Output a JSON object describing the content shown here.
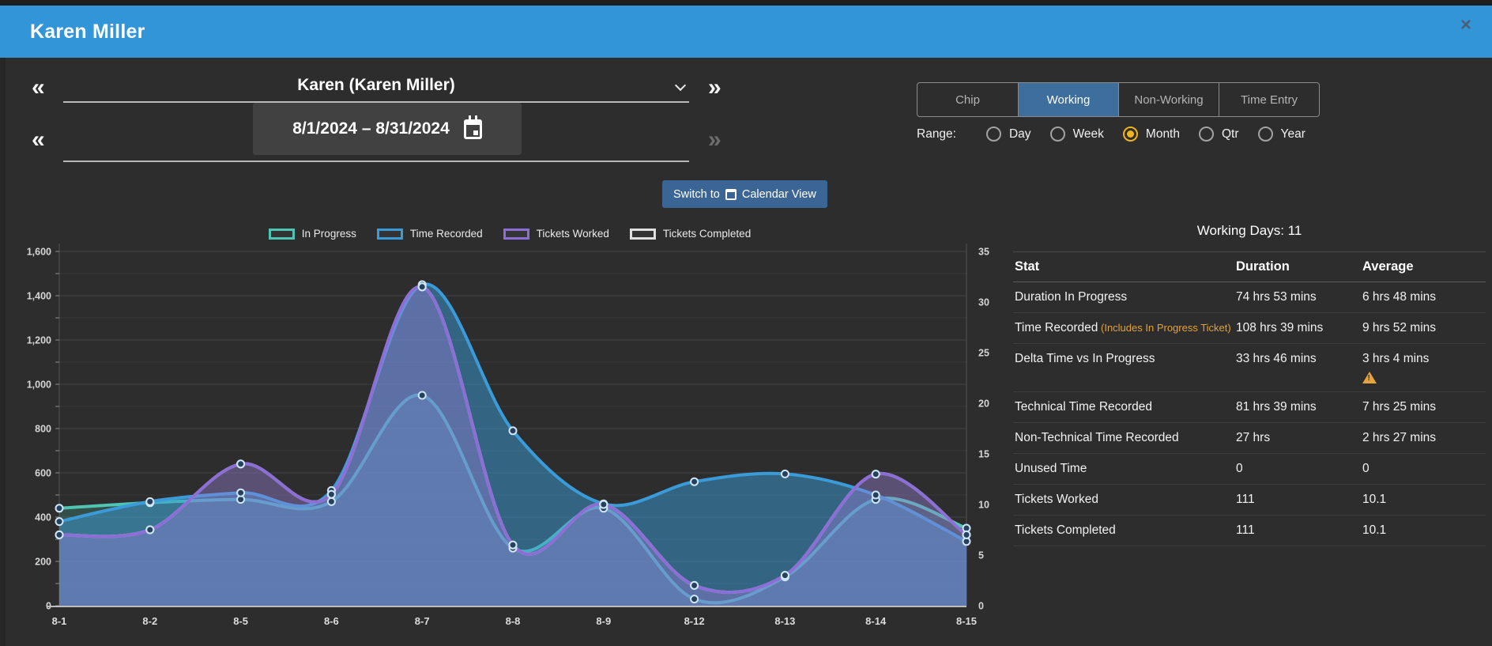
{
  "window": {
    "title": "Karen Miller",
    "close": "×"
  },
  "selectors": {
    "person": {
      "prev": "«",
      "label": "Karen (Karen Miller)",
      "next": "»"
    },
    "dates": {
      "prev": "«",
      "value": "8/1/2024 – 8/31/2024",
      "next": "»"
    }
  },
  "view_tabs": {
    "tabs": [
      "Chip",
      "Working",
      "Non-Working",
      "Time Entry"
    ],
    "active": "Working"
  },
  "range": {
    "label": "Range:",
    "options": [
      "Day",
      "Week",
      "Month",
      "Qtr",
      "Year"
    ],
    "selected": "Month"
  },
  "calendar_button": {
    "prefix": "Switch to",
    "suffix": "Calendar View"
  },
  "summary": {
    "title": "Working Days: 11",
    "columns": [
      "Stat",
      "Duration",
      "Average"
    ],
    "rows": [
      {
        "stat": "Duration In Progress",
        "duration": "74 hrs 53 mins",
        "average": "6 hrs 48 mins"
      },
      {
        "stat": "Time Recorded",
        "note": "(Includes In Progress Ticket)",
        "duration": "108 hrs 39 mins",
        "average": "9 hrs 52 mins"
      },
      {
        "stat": "Delta Time vs In Progress",
        "duration": "33 hrs 46 mins",
        "average": "3 hrs 4 mins",
        "warning": true
      },
      {
        "stat": "Technical Time Recorded",
        "duration": "81 hrs 39 mins",
        "average": "7 hrs 25 mins"
      },
      {
        "stat": "Non-Technical Time Recorded",
        "duration": "27 hrs",
        "average": "2 hrs 27 mins"
      },
      {
        "stat": "Unused Time",
        "duration": "0",
        "average": "0"
      },
      {
        "stat": "Tickets Worked",
        "duration": "111",
        "average": "10.1"
      },
      {
        "stat": "Tickets Completed",
        "duration": "111",
        "average": "10.1"
      }
    ]
  },
  "chart_data": {
    "type": "line",
    "x": [
      "8-1",
      "8-2",
      "8-5",
      "8-6",
      "8-7",
      "8-8",
      "8-9",
      "8-12",
      "8-13",
      "8-14",
      "8-15"
    ],
    "left_axis": {
      "min": 0,
      "max": 1600,
      "tick_step": 200,
      "minor_step": 100
    },
    "right_axis": {
      "min": 0,
      "max": 35,
      "tick_step": 5
    },
    "grid": true,
    "legend_position": "top",
    "series": [
      {
        "name": "In Progress",
        "axis": "left",
        "color": "#4fc4b2",
        "fill": "rgba(79,196,178,0.22)",
        "values": [
          440,
          465,
          480,
          470,
          950,
          260,
          440,
          30,
          130,
          480,
          350
        ]
      },
      {
        "name": "Time Recorded",
        "axis": "left",
        "color": "#3a9bd8",
        "fill": "rgba(58,155,216,0.50)",
        "values": [
          380,
          470,
          510,
          520,
          1450,
          790,
          460,
          560,
          595,
          500,
          290
        ]
      },
      {
        "name": "Tickets Completed",
        "axis": "right",
        "color": "#e0e0e0",
        "fill": "rgba(224,224,224,0.10)",
        "values": [
          7,
          7.5,
          14,
          11,
          31.5,
          6,
          10,
          2,
          3,
          13,
          7
        ]
      },
      {
        "name": "Tickets Worked",
        "axis": "right",
        "color": "#8b6fd6",
        "fill": "rgba(139,111,214,0.35)",
        "values": [
          7,
          7.5,
          14,
          11,
          31.5,
          6,
          10,
          2,
          3,
          13,
          7
        ]
      }
    ],
    "legend_order": [
      "In Progress",
      "Time Recorded",
      "Tickets Worked",
      "Tickets Completed"
    ]
  }
}
